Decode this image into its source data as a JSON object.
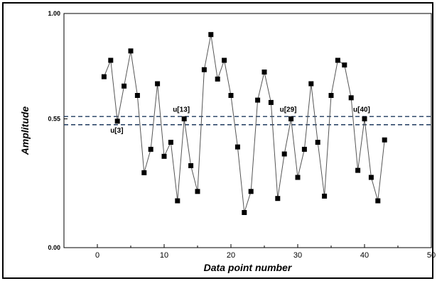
{
  "chart_data": {
    "type": "line",
    "title": "",
    "xlabel": "Data point number",
    "ylabel": "Amplitude",
    "xlim": [
      -5,
      50
    ],
    "ylim": [
      0.0,
      1.0
    ],
    "x_ticks": [
      0,
      10,
      20,
      30,
      40,
      50
    ],
    "x_tick_labels": [
      "0",
      "10",
      "20",
      "30",
      "40",
      "50"
    ],
    "y_ticks": [
      0.0,
      0.55,
      1.0
    ],
    "y_tick_labels": [
      "0.00",
      "0.55",
      "1.00"
    ],
    "grid": false,
    "colors": {
      "line": "#555555",
      "marker": "#000000",
      "threshold": "#1f3a5f"
    },
    "series": [
      {
        "x": [
          1,
          2,
          3,
          4,
          5,
          6,
          7,
          8,
          9,
          10,
          11,
          12,
          13,
          14,
          15,
          16,
          17,
          18,
          19,
          20,
          21,
          22,
          23,
          24,
          25,
          26,
          27,
          28,
          29,
          30,
          31,
          32,
          33,
          34,
          35,
          36,
          37,
          38,
          39,
          40,
          41,
          42,
          43
        ],
        "y": [
          0.73,
          0.8,
          0.54,
          0.69,
          0.84,
          0.65,
          0.32,
          0.42,
          0.7,
          0.39,
          0.45,
          0.2,
          0.55,
          0.35,
          0.24,
          0.76,
          0.91,
          0.72,
          0.8,
          0.65,
          0.43,
          0.15,
          0.24,
          0.63,
          0.75,
          0.62,
          0.21,
          0.4,
          0.55,
          0.3,
          0.42,
          0.7,
          0.45,
          0.22,
          0.65,
          0.8,
          0.78,
          0.64,
          0.33,
          0.55,
          0.3,
          0.2,
          0.46
        ]
      }
    ],
    "thresholds": [
      0.56,
      0.525
    ],
    "annotations": [
      {
        "text": "u[3]",
        "x": 3,
        "y": 0.54
      },
      {
        "text": "u[13]",
        "x": 13,
        "y": 0.55
      },
      {
        "text": "u[29]",
        "x": 29,
        "y": 0.55
      },
      {
        "text": "u[40]",
        "x": 40,
        "y": 0.55
      }
    ]
  }
}
